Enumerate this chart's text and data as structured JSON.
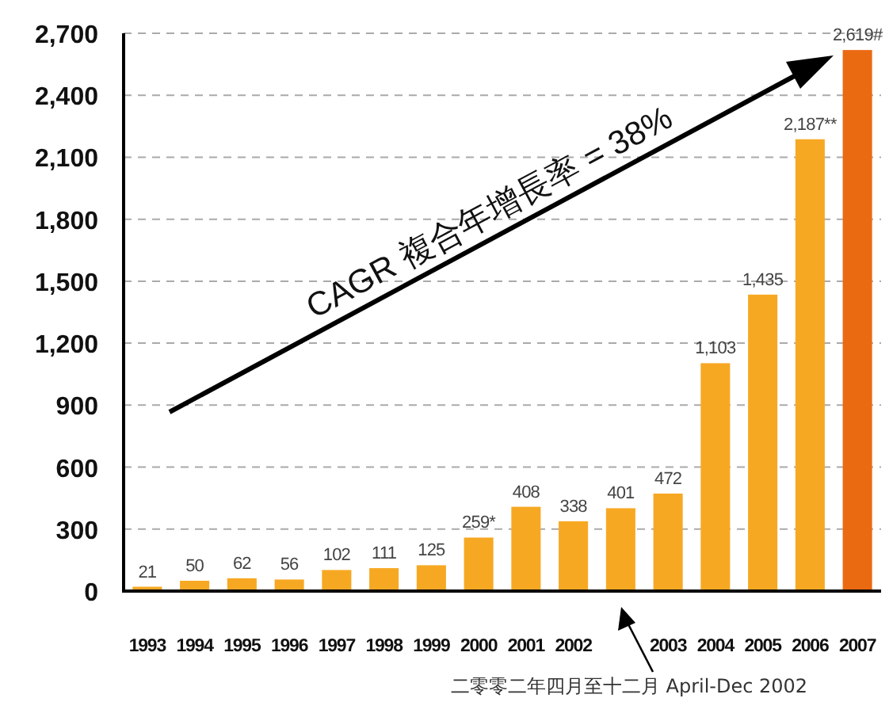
{
  "chart_data": {
    "type": "bar",
    "categories": [
      "1993",
      "1994",
      "1995",
      "1996",
      "1997",
      "1998",
      "1999",
      "2000",
      "2001",
      "2002",
      null,
      "2003",
      "2004",
      "2005",
      "2006",
      "2007"
    ],
    "values": [
      21,
      50,
      62,
      56,
      102,
      111,
      125,
      259,
      408,
      338,
      401,
      472,
      1103,
      1435,
      2187,
      2619
    ],
    "value_labels": [
      "21",
      "50",
      "62",
      "56",
      "102",
      "111",
      "125",
      "259*",
      "408",
      "338",
      "401",
      "472",
      "1,103",
      "1,435",
      "2,187**",
      "2,619#"
    ],
    "colors": [
      "#f7a823",
      "#f7a823",
      "#f7a823",
      "#f7a823",
      "#f7a823",
      "#f7a823",
      "#f7a823",
      "#f7a823",
      "#f7a823",
      "#f7a823",
      "#f7a823",
      "#f7a823",
      "#f7a823",
      "#f7a823",
      "#f7a823",
      "#ea6a12"
    ],
    "ylim": [
      0,
      2700
    ],
    "yticks": [
      0,
      300,
      600,
      900,
      {
        "value": 1200,
        "label": "1,200"
      },
      {
        "value": 1500,
        "label": "1,500"
      },
      {
        "value": 1800,
        "label": "1,800"
      },
      {
        "value": 2100,
        "label": "2,100"
      },
      {
        "value": 2400,
        "label": "2,400"
      },
      {
        "value": 2700,
        "label": "2,700"
      }
    ],
    "grid": "y",
    "annotations": [
      "CAGR 複合年增長率 = 38%",
      "二零零二年四月至十二月 April-Dec 2002"
    ]
  }
}
